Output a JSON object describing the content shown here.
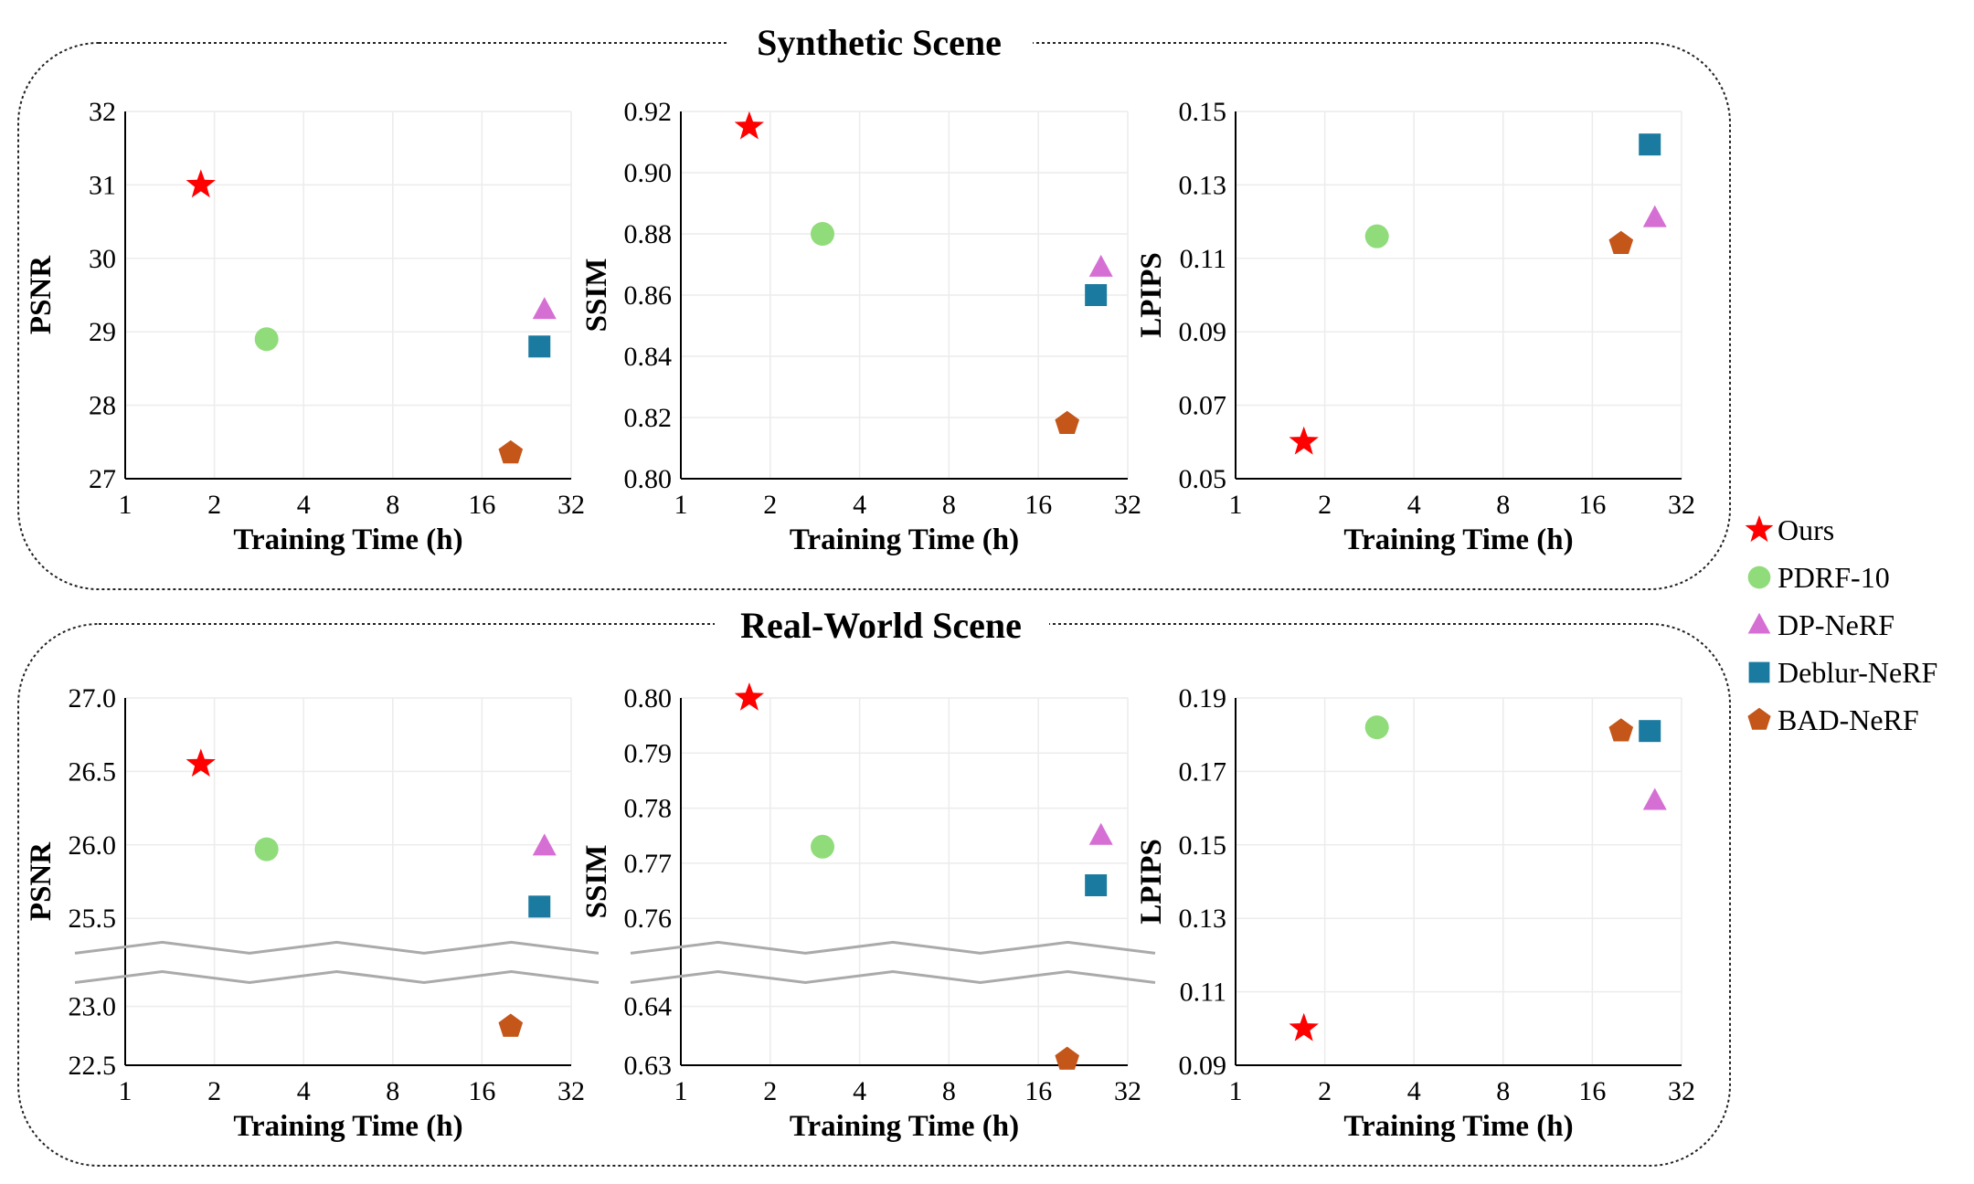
{
  "groups": [
    {
      "title": "Synthetic Scene"
    },
    {
      "title": "Real-World Scene"
    }
  ],
  "legend": [
    {
      "label": "Ours",
      "marker": "star",
      "color": "#ff0000"
    },
    {
      "label": "PDRF-10",
      "marker": "circle",
      "color": "#90dc7a"
    },
    {
      "label": "DP-NeRF",
      "marker": "triangle",
      "color": "#d66fd4"
    },
    {
      "label": "Deblur-NeRF",
      "marker": "square",
      "color": "#1a7aa0"
    },
    {
      "label": "BAD-NeRF",
      "marker": "pentagon",
      "color": "#c4561a"
    }
  ],
  "chart_data": [
    {
      "type": "scatter",
      "group": 0,
      "xlabel": "Training Time (h)",
      "ylabel": "PSNR",
      "x_scale": "log2",
      "x_ticks": [
        1,
        2,
        4,
        8,
        16,
        32
      ],
      "xlim": [
        1,
        32
      ],
      "ylim": [
        27,
        32
      ],
      "y_ticks": [
        "27",
        "28",
        "29",
        "30",
        "31",
        "32"
      ],
      "points": [
        {
          "series": "Ours",
          "x": 1.8,
          "y": 31.0
        },
        {
          "series": "PDRF-10",
          "x": 3.0,
          "y": 28.9
        },
        {
          "series": "DP-NeRF",
          "x": 26,
          "y": 29.3
        },
        {
          "series": "Deblur-NeRF",
          "x": 25,
          "y": 28.8
        },
        {
          "series": "BAD-NeRF",
          "x": 20,
          "y": 27.35
        }
      ]
    },
    {
      "type": "scatter",
      "group": 0,
      "xlabel": "Training Time (h)",
      "ylabel": "SSIM",
      "x_scale": "log2",
      "x_ticks": [
        1,
        2,
        4,
        8,
        16,
        32
      ],
      "xlim": [
        1,
        32
      ],
      "ylim": [
        0.8,
        0.92
      ],
      "y_ticks": [
        "0.80",
        "0.82",
        "0.84",
        "0.86",
        "0.88",
        "0.90",
        "0.92"
      ],
      "points": [
        {
          "series": "Ours",
          "x": 1.7,
          "y": 0.915
        },
        {
          "series": "PDRF-10",
          "x": 3.0,
          "y": 0.88
        },
        {
          "series": "DP-NeRF",
          "x": 26,
          "y": 0.869
        },
        {
          "series": "Deblur-NeRF",
          "x": 25,
          "y": 0.86
        },
        {
          "series": "BAD-NeRF",
          "x": 20,
          "y": 0.818
        }
      ]
    },
    {
      "type": "scatter",
      "group": 0,
      "xlabel": "Training Time (h)",
      "ylabel": "LPIPS",
      "x_scale": "log2",
      "x_ticks": [
        1,
        2,
        4,
        8,
        16,
        32
      ],
      "xlim": [
        1,
        32
      ],
      "ylim": [
        0.05,
        0.15
      ],
      "y_ticks": [
        "0.05",
        "0.07",
        "0.09",
        "0.11",
        "0.13",
        "0.15"
      ],
      "points": [
        {
          "series": "Ours",
          "x": 1.7,
          "y": 0.06
        },
        {
          "series": "PDRF-10",
          "x": 3.0,
          "y": 0.116
        },
        {
          "series": "DP-NeRF",
          "x": 26,
          "y": 0.121
        },
        {
          "series": "Deblur-NeRF",
          "x": 25,
          "y": 0.141
        },
        {
          "series": "BAD-NeRF",
          "x": 20,
          "y": 0.114
        }
      ]
    },
    {
      "type": "scatter",
      "group": 1,
      "xlabel": "Training Time (h)",
      "ylabel": "PSNR",
      "x_scale": "log2",
      "x_ticks": [
        1,
        2,
        4,
        8,
        16,
        32
      ],
      "xlim": [
        1,
        32
      ],
      "y_ticks": [
        "22.5",
        "23.0",
        "25.5",
        "26.0",
        "26.5",
        "27.0"
      ],
      "broken_axis": {
        "lower": [
          22.5,
          23.0
        ],
        "upper": [
          25.5,
          27.0
        ]
      },
      "points": [
        {
          "series": "Ours",
          "x": 1.8,
          "y": 26.55
        },
        {
          "series": "PDRF-10",
          "x": 3.0,
          "y": 25.97
        },
        {
          "series": "DP-NeRF",
          "x": 26,
          "y": 25.99
        },
        {
          "series": "Deblur-NeRF",
          "x": 25,
          "y": 25.58
        },
        {
          "series": "BAD-NeRF",
          "x": 20,
          "y": 22.83
        }
      ]
    },
    {
      "type": "scatter",
      "group": 1,
      "xlabel": "Training Time (h)",
      "ylabel": "SSIM",
      "x_scale": "log2",
      "x_ticks": [
        1,
        2,
        4,
        8,
        16,
        32
      ],
      "xlim": [
        1,
        32
      ],
      "y_ticks": [
        "0.63",
        "0.64",
        "0.76",
        "0.77",
        "0.78",
        "0.79",
        "0.80"
      ],
      "broken_axis": {
        "lower": [
          0.63,
          0.64
        ],
        "upper": [
          0.76,
          0.8
        ]
      },
      "points": [
        {
          "series": "Ours",
          "x": 1.7,
          "y": 0.8
        },
        {
          "series": "PDRF-10",
          "x": 3.0,
          "y": 0.773
        },
        {
          "series": "DP-NeRF",
          "x": 26,
          "y": 0.775
        },
        {
          "series": "Deblur-NeRF",
          "x": 25,
          "y": 0.766
        },
        {
          "series": "BAD-NeRF",
          "x": 20,
          "y": 0.631
        }
      ]
    },
    {
      "type": "scatter",
      "group": 1,
      "xlabel": "Training Time (h)",
      "ylabel": "LPIPS",
      "x_scale": "log2",
      "x_ticks": [
        1,
        2,
        4,
        8,
        16,
        32
      ],
      "xlim": [
        1,
        32
      ],
      "ylim": [
        0.09,
        0.19
      ],
      "y_ticks": [
        "0.09",
        "0.11",
        "0.13",
        "0.15",
        "0.17",
        "0.19"
      ],
      "points": [
        {
          "series": "Ours",
          "x": 1.7,
          "y": 0.1
        },
        {
          "series": "PDRF-10",
          "x": 3.0,
          "y": 0.182
        },
        {
          "series": "DP-NeRF",
          "x": 26,
          "y": 0.162
        },
        {
          "series": "Deblur-NeRF",
          "x": 25,
          "y": 0.181
        },
        {
          "series": "BAD-NeRF",
          "x": 20,
          "y": 0.181
        }
      ]
    }
  ]
}
